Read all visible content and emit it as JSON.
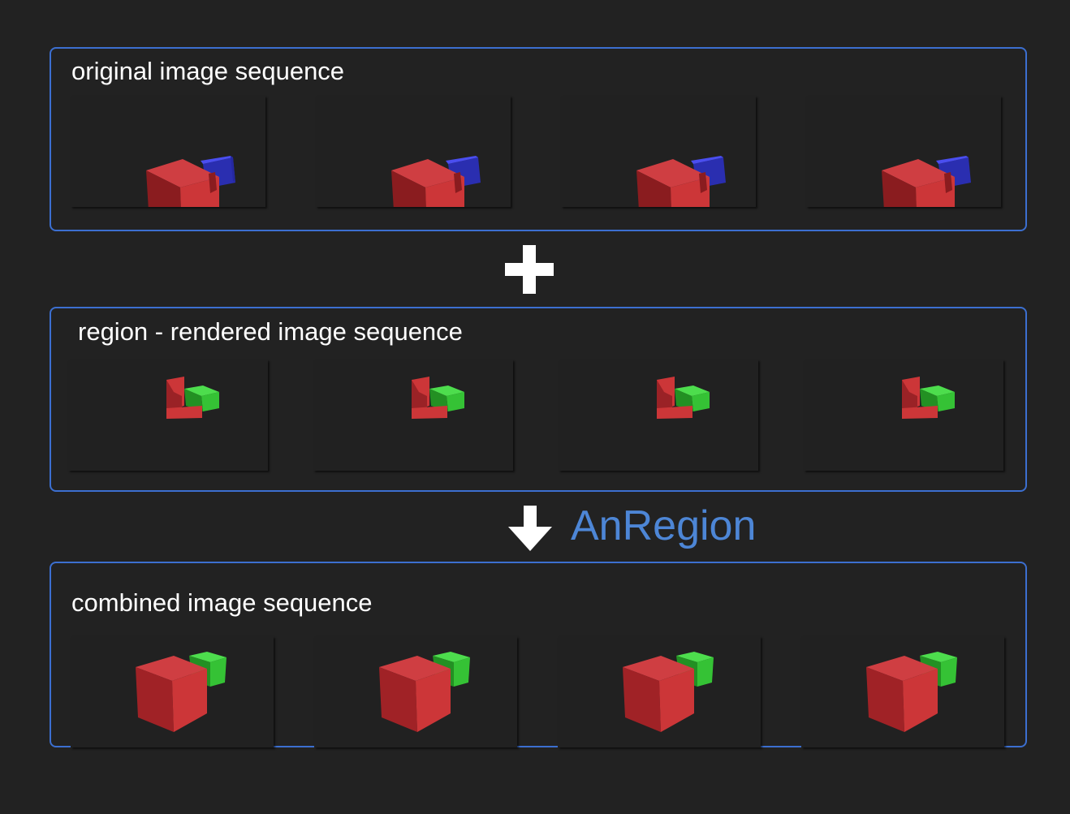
{
  "panels": {
    "original": {
      "title": "original image sequence",
      "frames": [
        "frame-1",
        "frame-2",
        "frame-3",
        "frame-4"
      ]
    },
    "region": {
      "title": "region - rendered image sequence",
      "frames": [
        "frame-1",
        "frame-2",
        "frame-3",
        "frame-4"
      ]
    },
    "combined": {
      "title": "combined image sequence",
      "frames": [
        "frame-1",
        "frame-2",
        "frame-3",
        "frame-4"
      ]
    }
  },
  "operators": {
    "plus_icon": "plus-icon",
    "arrow_icon": "arrow-down-icon",
    "method_label": "AnRegion"
  },
  "colors": {
    "background": "#222222",
    "panel_border": "#3c6fd0",
    "label_text": "#ffffff",
    "method_text": "#4d86d6",
    "red_cube": "#cc3638",
    "blue_cube": "#3b3ed8",
    "green_cube": "#35c235"
  }
}
